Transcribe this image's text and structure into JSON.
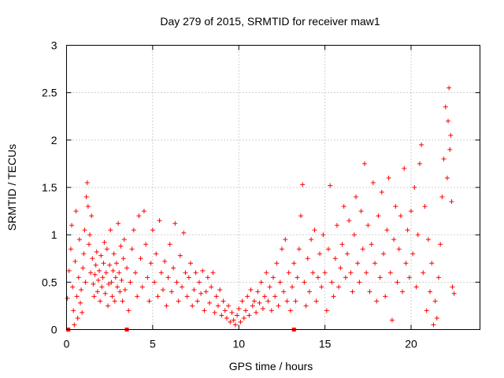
{
  "chart_data": {
    "type": "scatter",
    "title": "Day 279 of 2015, SRMTID for receiver maw1",
    "xlabel": "GPS time / hours",
    "ylabel": "SRMTID / TECUs",
    "xlim": [
      0,
      24
    ],
    "ylim": [
      0,
      3
    ],
    "xticks": [
      0,
      5,
      10,
      15,
      20
    ],
    "xtick_labels": [
      "0",
      "5",
      "10",
      "15",
      "20"
    ],
    "yticks": [
      0,
      0.5,
      1,
      1.5,
      2,
      2.5,
      3
    ],
    "ytick_labels": [
      "0",
      "0.5",
      "1",
      "1.5",
      "2",
      "2.5",
      "3"
    ],
    "grid": true,
    "marker": "+",
    "color": "#ff0000",
    "series": [
      {
        "name": "SRMTID",
        "points": [
          [
            0.05,
            0.33
          ],
          [
            0.15,
            0.62
          ],
          [
            0.25,
            0.85
          ],
          [
            0.3,
            1.1
          ],
          [
            0.35,
            0.45
          ],
          [
            0.4,
            0.2
          ],
          [
            0.45,
            0.05
          ],
          [
            0.5,
            0.72
          ],
          [
            0.55,
            1.25
          ],
          [
            0.6,
            0.35
          ],
          [
            0.65,
            0.12
          ],
          [
            0.7,
            0.55
          ],
          [
            0.75,
            0.95
          ],
          [
            0.8,
            0.28
          ],
          [
            0.85,
            0.42
          ],
          [
            0.9,
            0.18
          ],
          [
            0.95,
            0.65
          ],
          [
            1.0,
            0.8
          ],
          [
            1.05,
            1.05
          ],
          [
            1.1,
            0.5
          ],
          [
            1.15,
            1.4
          ],
          [
            1.2,
            1.55
          ],
          [
            1.25,
            1.3
          ],
          [
            1.3,
            0.9
          ],
          [
            1.35,
            1.0
          ],
          [
            1.4,
            0.6
          ],
          [
            1.45,
            1.2
          ],
          [
            1.5,
            0.75
          ],
          [
            1.55,
            0.48
          ],
          [
            1.6,
            0.35
          ],
          [
            1.65,
            0.58
          ],
          [
            1.7,
            0.68
          ],
          [
            1.75,
            0.82
          ],
          [
            1.8,
            0.4
          ],
          [
            1.85,
            0.52
          ],
          [
            1.9,
            0.62
          ],
          [
            1.95,
            0.3
          ],
          [
            2.0,
            0.78
          ],
          [
            2.05,
            0.45
          ],
          [
            2.1,
            0.55
          ],
          [
            2.15,
            0.7
          ],
          [
            2.2,
            0.92
          ],
          [
            2.25,
            0.38
          ],
          [
            2.3,
            0.6
          ],
          [
            2.35,
            0.85
          ],
          [
            2.4,
            0.25
          ],
          [
            2.45,
            0.48
          ],
          [
            2.5,
            0.68
          ],
          [
            2.55,
            1.05
          ],
          [
            2.6,
            0.5
          ],
          [
            2.65,
            0.35
          ],
          [
            2.7,
            0.62
          ],
          [
            2.75,
            0.8
          ],
          [
            2.8,
            0.3
          ],
          [
            2.85,
            0.55
          ],
          [
            2.9,
            0.7
          ],
          [
            2.95,
            0.45
          ],
          [
            3.0,
            1.12
          ],
          [
            3.05,
            0.6
          ],
          [
            3.1,
            0.4
          ],
          [
            3.15,
            0.88
          ],
          [
            3.2,
            0.52
          ],
          [
            3.25,
            0.3
          ],
          [
            3.3,
            0.75
          ],
          [
            3.35,
            0.95
          ],
          [
            3.4,
            0.42
          ],
          [
            3.5,
            0.65
          ],
          [
            3.6,
            0.2
          ],
          [
            3.7,
            0.5
          ],
          [
            3.8,
            0.85
          ],
          [
            3.9,
            1.05
          ],
          [
            4.0,
            0.6
          ],
          [
            4.1,
            0.35
          ],
          [
            4.2,
            1.2
          ],
          [
            4.3,
            0.75
          ],
          [
            4.4,
            0.45
          ],
          [
            4.5,
            1.25
          ],
          [
            4.6,
            0.9
          ],
          [
            4.7,
            0.55
          ],
          [
            4.8,
            0.3
          ],
          [
            4.9,
            0.7
          ],
          [
            5.0,
            1.05
          ],
          [
            5.1,
            0.5
          ],
          [
            5.2,
            0.8
          ],
          [
            5.3,
            0.35
          ],
          [
            5.4,
            1.15
          ],
          [
            5.5,
            0.6
          ],
          [
            5.6,
            0.42
          ],
          [
            5.7,
            0.72
          ],
          [
            5.8,
            0.25
          ],
          [
            5.9,
            0.55
          ],
          [
            6.0,
            0.9
          ],
          [
            6.1,
            0.4
          ],
          [
            6.2,
            0.65
          ],
          [
            6.3,
            1.12
          ],
          [
            6.4,
            0.5
          ],
          [
            6.5,
            0.3
          ],
          [
            6.6,
            0.78
          ],
          [
            6.7,
            0.45
          ],
          [
            6.8,
            1.02
          ],
          [
            6.9,
            0.6
          ],
          [
            7.0,
            0.35
          ],
          [
            7.1,
            0.55
          ],
          [
            7.2,
            0.7
          ],
          [
            7.3,
            0.25
          ],
          [
            7.4,
            0.42
          ],
          [
            7.5,
            0.6
          ],
          [
            7.6,
            0.3
          ],
          [
            7.7,
            0.5
          ],
          [
            7.8,
            0.38
          ],
          [
            7.9,
            0.62
          ],
          [
            8.0,
            0.2
          ],
          [
            8.1,
            0.4
          ],
          [
            8.2,
            0.55
          ],
          [
            8.3,
            0.28
          ],
          [
            8.4,
            0.45
          ],
          [
            8.5,
            0.6
          ],
          [
            8.6,
            0.18
          ],
          [
            8.7,
            0.35
          ],
          [
            8.8,
            0.25
          ],
          [
            8.9,
            0.42
          ],
          [
            9.0,
            0.15
          ],
          [
            9.1,
            0.3
          ],
          [
            9.2,
            0.2
          ],
          [
            9.3,
            0.12
          ],
          [
            9.4,
            0.25
          ],
          [
            9.5,
            0.08
          ],
          [
            9.6,
            0.18
          ],
          [
            9.7,
            0.1
          ],
          [
            9.8,
            0.05
          ],
          [
            9.9,
            0.15
          ],
          [
            10.0,
            0.22
          ],
          [
            10.1,
            0.08
          ],
          [
            10.2,
            0.3
          ],
          [
            10.3,
            0.12
          ],
          [
            10.4,
            0.2
          ],
          [
            10.5,
            0.35
          ],
          [
            10.6,
            0.15
          ],
          [
            10.7,
            0.42
          ],
          [
            10.8,
            0.25
          ],
          [
            10.9,
            0.3
          ],
          [
            11.0,
            0.18
          ],
          [
            11.1,
            0.4
          ],
          [
            11.2,
            0.28
          ],
          [
            11.3,
            0.5
          ],
          [
            11.4,
            0.22
          ],
          [
            11.5,
            0.35
          ],
          [
            11.6,
            0.6
          ],
          [
            11.7,
            0.3
          ],
          [
            11.8,
            0.45
          ],
          [
            11.9,
            0.2
          ],
          [
            12.0,
            0.55
          ],
          [
            12.1,
            0.35
          ],
          [
            12.2,
            0.7
          ],
          [
            12.3,
            0.25
          ],
          [
            12.4,
            0.5
          ],
          [
            12.5,
            0.85
          ],
          [
            12.6,
            0.4
          ],
          [
            12.7,
            0.95
          ],
          [
            12.8,
            0.3
          ],
          [
            12.9,
            0.6
          ],
          [
            13.0,
            0.2
          ],
          [
            13.1,
            0.45
          ],
          [
            13.2,
            0.7
          ],
          [
            13.3,
            0.3
          ],
          [
            13.4,
            0.55
          ],
          [
            13.5,
            0.85
          ],
          [
            13.6,
            1.2
          ],
          [
            13.7,
            1.53
          ],
          [
            13.8,
            0.5
          ],
          [
            13.9,
            0.25
          ],
          [
            14.0,
            0.75
          ],
          [
            14.1,
            0.4
          ],
          [
            14.2,
            0.95
          ],
          [
            14.3,
            0.6
          ],
          [
            14.4,
            1.05
          ],
          [
            14.5,
            0.3
          ],
          [
            14.6,
            0.55
          ],
          [
            14.7,
            0.8
          ],
          [
            14.8,
            0.45
          ],
          [
            14.9,
            1.0
          ],
          [
            15.0,
            0.6
          ],
          [
            15.1,
            0.2
          ],
          [
            15.2,
            0.85
          ],
          [
            15.3,
            1.52
          ],
          [
            15.4,
            0.5
          ],
          [
            15.5,
            0.35
          ],
          [
            15.6,
            0.75
          ],
          [
            15.7,
            1.1
          ],
          [
            15.8,
            0.45
          ],
          [
            15.9,
            0.65
          ],
          [
            16.0,
            0.9
          ],
          [
            16.1,
            1.3
          ],
          [
            16.2,
            0.55
          ],
          [
            16.3,
            0.8
          ],
          [
            16.4,
            1.15
          ],
          [
            16.5,
            0.6
          ],
          [
            16.6,
            0.4
          ],
          [
            16.7,
            1.0
          ],
          [
            16.8,
            1.4
          ],
          [
            16.9,
            0.7
          ],
          [
            17.0,
            0.5
          ],
          [
            17.1,
            1.25
          ],
          [
            17.2,
            0.85
          ],
          [
            17.3,
            1.75
          ],
          [
            17.4,
            0.6
          ],
          [
            17.5,
            1.1
          ],
          [
            17.6,
            0.4
          ],
          [
            17.7,
            0.9
          ],
          [
            17.8,
            1.55
          ],
          [
            17.9,
            0.7
          ],
          [
            18.0,
            0.3
          ],
          [
            18.1,
            1.2
          ],
          [
            18.2,
            0.55
          ],
          [
            18.3,
            1.45
          ],
          [
            18.4,
            0.8
          ],
          [
            18.5,
            0.35
          ],
          [
            18.6,
            1.05
          ],
          [
            18.7,
            1.6
          ],
          [
            18.8,
            0.6
          ],
          [
            18.9,
            0.1
          ],
          [
            19.0,
            0.95
          ],
          [
            19.1,
            1.3
          ],
          [
            19.2,
            0.5
          ],
          [
            19.3,
            0.85
          ],
          [
            19.4,
            1.2
          ],
          [
            19.5,
            0.4
          ],
          [
            19.6,
            1.7
          ],
          [
            19.7,
            0.7
          ],
          [
            19.8,
            1.05
          ],
          [
            19.9,
            0.55
          ],
          [
            20.0,
            1.25
          ],
          [
            20.1,
            0.8
          ],
          [
            20.2,
            1.5
          ],
          [
            20.3,
            0.45
          ],
          [
            20.4,
            1.0
          ],
          [
            20.5,
            1.75
          ],
          [
            20.6,
            1.95
          ],
          [
            20.7,
            0.6
          ],
          [
            20.8,
            1.3
          ],
          [
            20.9,
            0.2
          ],
          [
            21.0,
            0.95
          ],
          [
            21.1,
            0.4
          ],
          [
            21.2,
            0.7
          ],
          [
            21.3,
            0.05
          ],
          [
            21.4,
            0.3
          ],
          [
            21.5,
            0.12
          ],
          [
            21.6,
            0.55
          ],
          [
            21.7,
            0.9
          ],
          [
            21.8,
            1.4
          ],
          [
            21.9,
            1.8
          ],
          [
            22.0,
            2.35
          ],
          [
            22.1,
            1.6
          ],
          [
            22.15,
            2.2
          ],
          [
            22.2,
            2.55
          ],
          [
            22.25,
            1.9
          ],
          [
            22.3,
            2.05
          ],
          [
            22.35,
            1.35
          ],
          [
            22.4,
            0.45
          ],
          [
            22.5,
            0.38
          ]
        ]
      },
      {
        "name": "zero-level markers",
        "marker": "square",
        "points": [
          [
            0.1,
            0
          ],
          [
            3.5,
            0
          ],
          [
            13.2,
            0
          ]
        ]
      }
    ]
  }
}
